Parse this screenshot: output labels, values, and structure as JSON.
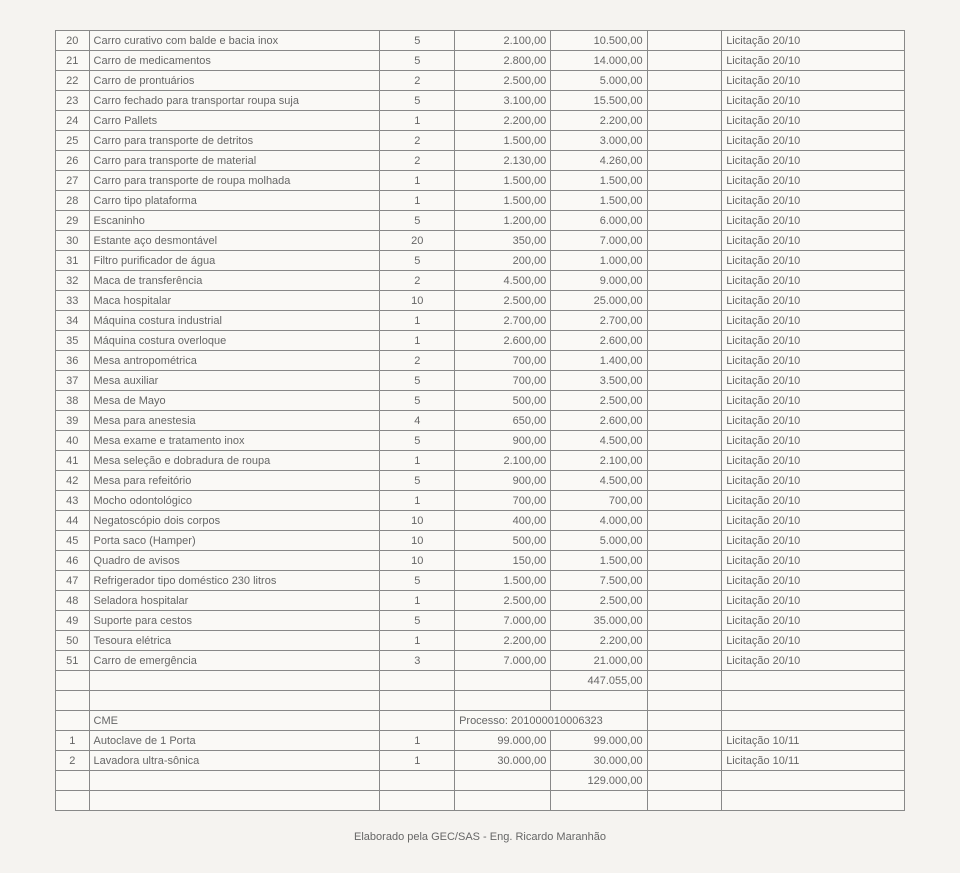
{
  "rows1": [
    {
      "n": "20",
      "desc": "Carro curativo com balde e bacia inox",
      "qty": "5",
      "unit": "2.100,00",
      "total": "10.500,00",
      "lic": "Licitação 20/10"
    },
    {
      "n": "21",
      "desc": "Carro de medicamentos",
      "qty": "5",
      "unit": "2.800,00",
      "total": "14.000,00",
      "lic": "Licitação 20/10"
    },
    {
      "n": "22",
      "desc": "Carro de prontuários",
      "qty": "2",
      "unit": "2.500,00",
      "total": "5.000,00",
      "lic": "Licitação 20/10"
    },
    {
      "n": "23",
      "desc": "Carro fechado para transportar roupa suja",
      "qty": "5",
      "unit": "3.100,00",
      "total": "15.500,00",
      "lic": "Licitação 20/10"
    },
    {
      "n": "24",
      "desc": "Carro Pallets",
      "qty": "1",
      "unit": "2.200,00",
      "total": "2.200,00",
      "lic": "Licitação 20/10"
    },
    {
      "n": "25",
      "desc": "Carro para transporte de detritos",
      "qty": "2",
      "unit": "1.500,00",
      "total": "3.000,00",
      "lic": "Licitação 20/10"
    },
    {
      "n": "26",
      "desc": "Carro para transporte de material",
      "qty": "2",
      "unit": "2.130,00",
      "total": "4.260,00",
      "lic": "Licitação 20/10"
    },
    {
      "n": "27",
      "desc": "Carro para transporte de roupa molhada",
      "qty": "1",
      "unit": "1.500,00",
      "total": "1.500,00",
      "lic": "Licitação 20/10"
    },
    {
      "n": "28",
      "desc": "Carro tipo plataforma",
      "qty": "1",
      "unit": "1.500,00",
      "total": "1.500,00",
      "lic": "Licitação 20/10"
    },
    {
      "n": "29",
      "desc": "Escaninho",
      "qty": "5",
      "unit": "1.200,00",
      "total": "6.000,00",
      "lic": "Licitação 20/10"
    },
    {
      "n": "30",
      "desc": "Estante aço desmontável",
      "qty": "20",
      "unit": "350,00",
      "total": "7.000,00",
      "lic": "Licitação 20/10"
    },
    {
      "n": "31",
      "desc": "Filtro purificador de água",
      "qty": "5",
      "unit": "200,00",
      "total": "1.000,00",
      "lic": "Licitação 20/10"
    },
    {
      "n": "32",
      "desc": "Maca de transferência",
      "qty": "2",
      "unit": "4.500,00",
      "total": "9.000,00",
      "lic": "Licitação 20/10"
    },
    {
      "n": "33",
      "desc": "Maca hospitalar",
      "qty": "10",
      "unit": "2.500,00",
      "total": "25.000,00",
      "lic": "Licitação 20/10"
    },
    {
      "n": "34",
      "desc": "Máquina costura industrial",
      "qty": "1",
      "unit": "2.700,00",
      "total": "2.700,00",
      "lic": "Licitação 20/10"
    },
    {
      "n": "35",
      "desc": "Máquina costura overloque",
      "qty": "1",
      "unit": "2.600,00",
      "total": "2.600,00",
      "lic": "Licitação 20/10"
    },
    {
      "n": "36",
      "desc": "Mesa antropométrica",
      "qty": "2",
      "unit": "700,00",
      "total": "1.400,00",
      "lic": "Licitação 20/10"
    },
    {
      "n": "37",
      "desc": "Mesa auxiliar",
      "qty": "5",
      "unit": "700,00",
      "total": "3.500,00",
      "lic": "Licitação 20/10"
    },
    {
      "n": "38",
      "desc": "Mesa de Mayo",
      "qty": "5",
      "unit": "500,00",
      "total": "2.500,00",
      "lic": "Licitação 20/10"
    },
    {
      "n": "39",
      "desc": "Mesa para anestesia",
      "qty": "4",
      "unit": "650,00",
      "total": "2.600,00",
      "lic": "Licitação 20/10"
    },
    {
      "n": "40",
      "desc": "Mesa exame e tratamento inox",
      "qty": "5",
      "unit": "900,00",
      "total": "4.500,00",
      "lic": "Licitação 20/10"
    },
    {
      "n": "41",
      "desc": "Mesa seleção e dobradura de roupa",
      "qty": "1",
      "unit": "2.100,00",
      "total": "2.100,00",
      "lic": "Licitação 20/10"
    },
    {
      "n": "42",
      "desc": "Mesa para refeitório",
      "qty": "5",
      "unit": "900,00",
      "total": "4.500,00",
      "lic": "Licitação 20/10"
    },
    {
      "n": "43",
      "desc": "Mocho odontológico",
      "qty": "1",
      "unit": "700,00",
      "total": "700,00",
      "lic": "Licitação 20/10"
    },
    {
      "n": "44",
      "desc": "Negatoscópio dois corpos",
      "qty": "10",
      "unit": "400,00",
      "total": "4.000,00",
      "lic": "Licitação 20/10"
    },
    {
      "n": "45",
      "desc": "Porta saco (Hamper)",
      "qty": "10",
      "unit": "500,00",
      "total": "5.000,00",
      "lic": "Licitação 20/10"
    },
    {
      "n": "46",
      "desc": "Quadro de avisos",
      "qty": "10",
      "unit": "150,00",
      "total": "1.500,00",
      "lic": "Licitação 20/10"
    },
    {
      "n": "47",
      "desc": "Refrigerador tipo doméstico 230 litros",
      "qty": "5",
      "unit": "1.500,00",
      "total": "7.500,00",
      "lic": "Licitação 20/10"
    },
    {
      "n": "48",
      "desc": "Seladora hospitalar",
      "qty": "1",
      "unit": "2.500,00",
      "total": "2.500,00",
      "lic": "Licitação 20/10"
    },
    {
      "n": "49",
      "desc": "Suporte para cestos",
      "qty": "5",
      "unit": "7.000,00",
      "total": "35.000,00",
      "lic": "Licitação 20/10"
    },
    {
      "n": "50",
      "desc": "Tesoura elétrica",
      "qty": "1",
      "unit": "2.200,00",
      "total": "2.200,00",
      "lic": "Licitação 20/10"
    },
    {
      "n": "51",
      "desc": "Carro de emergência",
      "qty": "3",
      "unit": "7.000,00",
      "total": "21.000,00",
      "lic": "Licitação 20/10"
    }
  ],
  "total1": "447.055,00",
  "cme_label": "CME",
  "processo_label": "Processo: 201000010006323",
  "rows2": [
    {
      "n": "1",
      "desc": "Autoclave de 1 Porta",
      "qty": "1",
      "unit": "99.000,00",
      "total": "99.000,00",
      "lic": "Licitação 10/11"
    },
    {
      "n": "2",
      "desc": "Lavadora ultra-sônica",
      "qty": "1",
      "unit": "30.000,00",
      "total": "30.000,00",
      "lic": "Licitação 10/11"
    }
  ],
  "total2": "129.000,00",
  "footer": "Elaborado pela GEC/SAS - Eng. Ricardo Maranhão"
}
